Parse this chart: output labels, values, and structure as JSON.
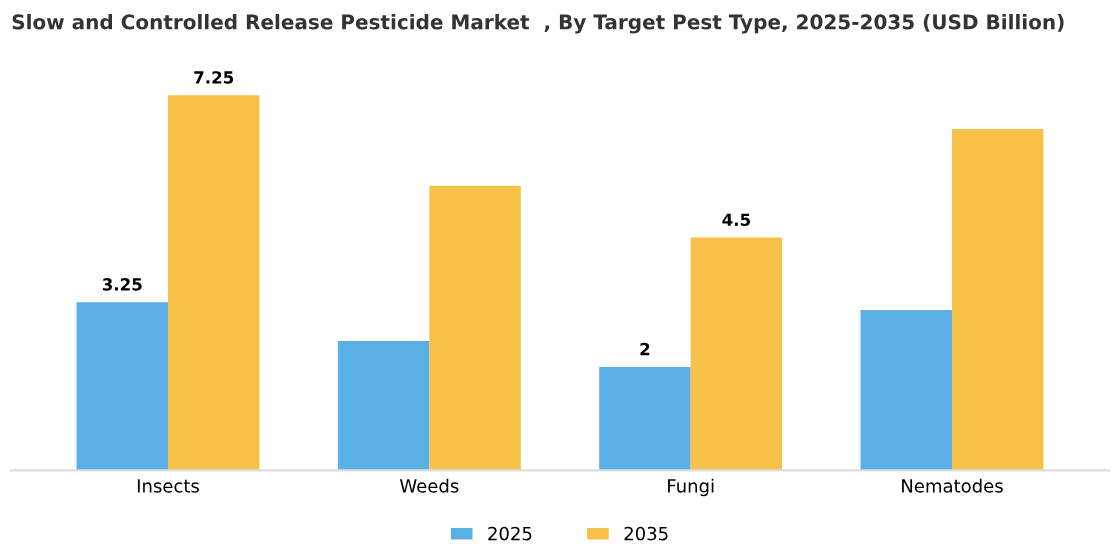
{
  "chart_data": {
    "type": "bar",
    "title": "Slow and Controlled Release Pesticide Market  , By Target Pest Type, 2025-2035 (USD Billion)",
    "categories": [
      "Insects",
      "Weeds",
      "Fungi",
      "Nematodes"
    ],
    "series": [
      {
        "name": "2025",
        "color": "#5ab0e4",
        "values": [
          3.25,
          2.5,
          2,
          3.1
        ],
        "value_labels": [
          "3.25",
          null,
          "2",
          null
        ]
      },
      {
        "name": "2035",
        "color": "#f7c14a",
        "values": [
          7.25,
          5.5,
          4.5,
          6.6
        ],
        "value_labels": [
          "7.25",
          null,
          "4.5",
          null
        ]
      }
    ],
    "legend": "bottom",
    "grid": false
  }
}
